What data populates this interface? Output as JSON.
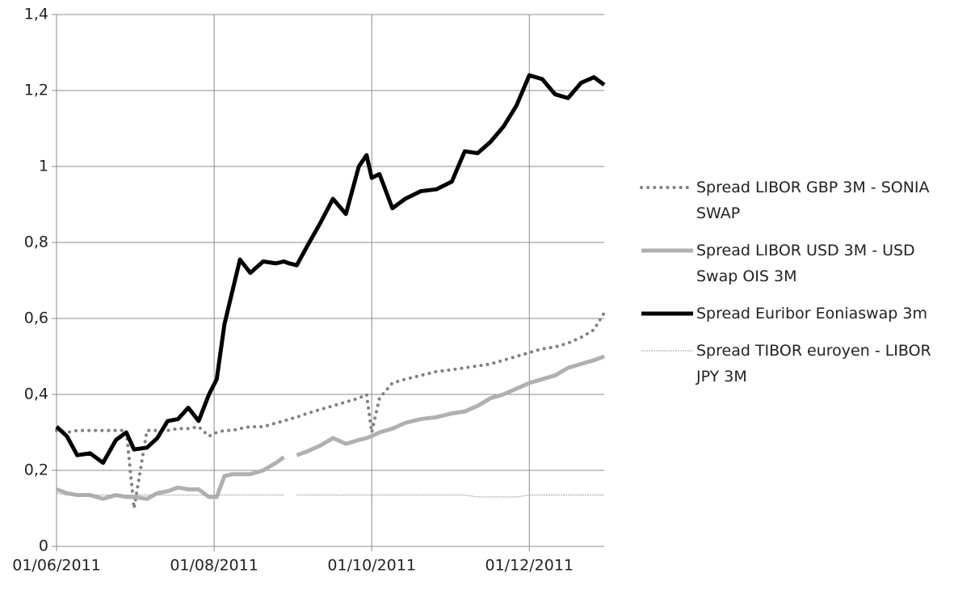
{
  "chart_data": {
    "type": "line",
    "x": [
      "2011-06-01",
      "2011-06-05",
      "2011-06-09",
      "2011-06-14",
      "2011-06-19",
      "2011-06-24",
      "2011-06-28",
      "2011-07-01",
      "2011-07-06",
      "2011-07-10",
      "2011-07-14",
      "2011-07-18",
      "2011-07-22",
      "2011-07-26",
      "2011-07-30",
      "2011-08-02",
      "2011-08-05",
      "2011-08-08",
      "2011-08-11",
      "2011-08-15",
      "2011-08-20",
      "2011-08-25",
      "2011-08-28",
      "2011-08-30",
      "2011-09-02",
      "2011-09-06",
      "2011-09-11",
      "2011-09-16",
      "2011-09-21",
      "2011-09-26",
      "2011-09-29",
      "2011-10-01",
      "2011-10-04",
      "2011-10-09",
      "2011-10-14",
      "2011-10-20",
      "2011-10-26",
      "2011-11-01",
      "2011-11-06",
      "2011-11-11",
      "2011-11-16",
      "2011-11-21",
      "2011-11-26",
      "2011-12-01",
      "2011-12-06",
      "2011-12-11",
      "2011-12-16",
      "2011-12-21",
      "2011-12-26",
      "2011-12-30"
    ],
    "series": [
      {
        "name": "Spread LIBOR GBP 3M - SONIA SWAP",
        "color": "#808080",
        "style": "dotted",
        "values": [
          0.305,
          0.3,
          0.305,
          0.305,
          0.305,
          0.305,
          0.305,
          0.1,
          0.305,
          0.305,
          0.305,
          0.31,
          0.31,
          0.315,
          0.29,
          0.3,
          0.305,
          0.305,
          0.31,
          0.315,
          0.315,
          0.325,
          0.33,
          0.335,
          0.34,
          0.35,
          0.36,
          0.37,
          0.38,
          0.39,
          0.4,
          0.3,
          0.39,
          0.43,
          0.44,
          0.45,
          0.46,
          0.465,
          0.47,
          0.475,
          0.48,
          0.49,
          0.5,
          0.51,
          0.52,
          0.525,
          0.535,
          0.55,
          0.57,
          0.615
        ]
      },
      {
        "name": "Spread LIBOR USD 3M - USD Swap OIS 3M",
        "color": "#b0b0b0",
        "style": "thick",
        "values": [
          0.15,
          0.14,
          0.135,
          0.135,
          0.125,
          0.135,
          0.13,
          0.13,
          0.125,
          0.14,
          0.145,
          0.155,
          0.15,
          0.15,
          0.13,
          0.13,
          0.185,
          0.19,
          0.19,
          0.19,
          0.2,
          0.22,
          0.235,
          null,
          0.24,
          0.25,
          0.265,
          0.285,
          0.27,
          0.28,
          0.285,
          0.29,
          0.3,
          0.31,
          0.325,
          0.335,
          0.34,
          0.35,
          0.355,
          0.37,
          0.39,
          0.4,
          0.415,
          0.43,
          0.44,
          0.45,
          0.47,
          0.48,
          0.49,
          0.5
        ]
      },
      {
        "name": "Spread Euribor Eoniaswap 3m",
        "color": "#000000",
        "style": "thick",
        "values": [
          0.315,
          0.29,
          0.24,
          0.245,
          0.22,
          0.28,
          0.3,
          0.255,
          0.26,
          0.285,
          0.33,
          0.335,
          0.365,
          0.33,
          0.4,
          0.44,
          0.585,
          0.67,
          0.755,
          0.72,
          0.75,
          0.745,
          0.75,
          0.745,
          0.74,
          0.79,
          0.85,
          0.915,
          0.875,
          1.0,
          1.03,
          0.97,
          0.98,
          0.89,
          0.915,
          0.935,
          0.94,
          0.96,
          1.04,
          1.035,
          1.065,
          1.105,
          1.16,
          1.24,
          1.23,
          1.19,
          1.18,
          1.22,
          1.235,
          1.215
        ]
      },
      {
        "name": "Spread TIBOR euroyen - LIBOR JPY 3M",
        "color": "#a0a0a0",
        "style": "thin",
        "values": [
          0.14,
          0.135,
          0.135,
          0.135,
          0.135,
          0.135,
          0.135,
          0.135,
          0.135,
          0.135,
          0.135,
          0.135,
          0.135,
          0.135,
          0.135,
          0.135,
          0.135,
          0.135,
          0.135,
          0.135,
          0.135,
          0.135,
          0.135,
          null,
          0.135,
          0.135,
          0.135,
          0.135,
          0.135,
          0.135,
          0.135,
          0.135,
          0.135,
          0.135,
          0.135,
          0.135,
          0.135,
          0.135,
          0.135,
          0.13,
          0.13,
          0.13,
          0.13,
          0.135,
          0.135,
          0.135,
          0.135,
          0.135,
          0.135,
          0.135
        ]
      }
    ],
    "xlim": [
      "2011-06-01",
      "2011-12-30"
    ],
    "xticks": [
      {
        "value": "2011-06-01",
        "label": "01/06/2011"
      },
      {
        "value": "2011-08-01",
        "label": "01/08/2011"
      },
      {
        "value": "2011-10-01",
        "label": "01/10/2011"
      },
      {
        "value": "2011-12-01",
        "label": "01/12/2011"
      }
    ],
    "ylim": [
      0,
      1.4
    ],
    "yticks": [
      0,
      {
        "value": 0.2,
        "label": "0,2"
      },
      {
        "value": 0.4,
        "label": "0,4"
      },
      {
        "value": 0.6,
        "label": "0,6"
      },
      {
        "value": 0.8,
        "label": "0,8"
      },
      1,
      {
        "value": 1.2,
        "label": "1,2"
      },
      {
        "value": 1.4,
        "label": "1,4"
      }
    ],
    "grid": true,
    "legend": "right"
  }
}
